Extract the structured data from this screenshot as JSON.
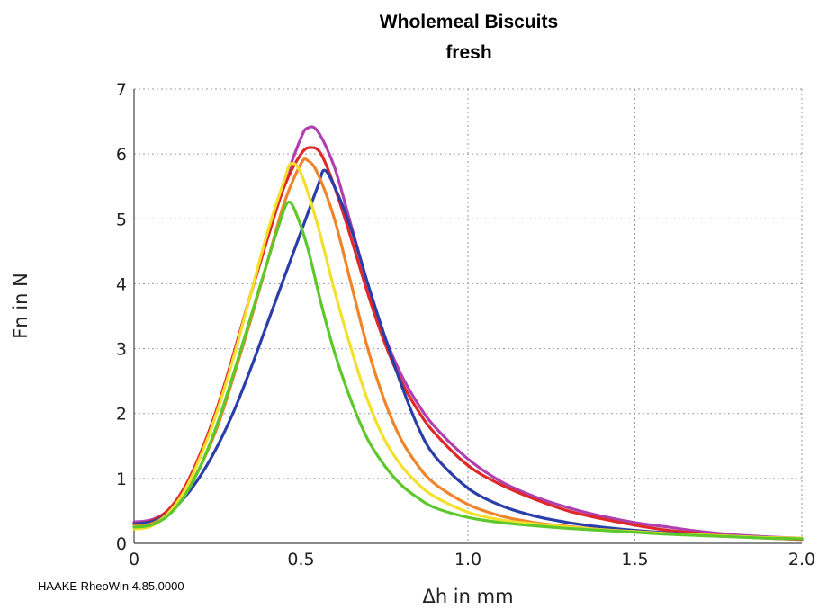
{
  "chart_data": {
    "type": "line",
    "title": "Wholemeal Biscuits",
    "subtitle": "fresh",
    "xlabel": "Δh in mm",
    "ylabel": "Fn in N",
    "xlim": [
      0,
      2.0
    ],
    "ylim": [
      0,
      7
    ],
    "xticks": [
      "0",
      "0.5",
      "1.0",
      "1.5",
      "2.0"
    ],
    "yticks": [
      "0",
      "1",
      "2",
      "3",
      "4",
      "5",
      "6",
      "7"
    ],
    "grid": true,
    "series": [
      {
        "color": "#b040b0",
        "points": [
          [
            0,
            0.33
          ],
          [
            0.05,
            0.36
          ],
          [
            0.1,
            0.5
          ],
          [
            0.15,
            0.85
          ],
          [
            0.2,
            1.4
          ],
          [
            0.25,
            2.1
          ],
          [
            0.3,
            2.95
          ],
          [
            0.35,
            3.85
          ],
          [
            0.4,
            4.75
          ],
          [
            0.45,
            5.55
          ],
          [
            0.5,
            6.25
          ],
          [
            0.52,
            6.4
          ],
          [
            0.55,
            6.35
          ],
          [
            0.6,
            5.8
          ],
          [
            0.65,
            4.9
          ],
          [
            0.7,
            4.0
          ],
          [
            0.75,
            3.2
          ],
          [
            0.8,
            2.6
          ],
          [
            0.85,
            2.15
          ],
          [
            0.9,
            1.8
          ],
          [
            1.0,
            1.3
          ],
          [
            1.1,
            0.95
          ],
          [
            1.2,
            0.72
          ],
          [
            1.3,
            0.55
          ],
          [
            1.4,
            0.42
          ],
          [
            1.5,
            0.32
          ],
          [
            1.6,
            0.25
          ],
          [
            1.7,
            0.18
          ],
          [
            1.8,
            0.13
          ],
          [
            1.9,
            0.1
          ],
          [
            2.0,
            0.08
          ]
        ]
      },
      {
        "color": "#e02828",
        "points": [
          [
            0,
            0.3
          ],
          [
            0.05,
            0.34
          ],
          [
            0.1,
            0.5
          ],
          [
            0.15,
            0.85
          ],
          [
            0.2,
            1.4
          ],
          [
            0.25,
            2.1
          ],
          [
            0.3,
            2.95
          ],
          [
            0.35,
            3.85
          ],
          [
            0.4,
            4.7
          ],
          [
            0.45,
            5.5
          ],
          [
            0.5,
            6.0
          ],
          [
            0.53,
            6.1
          ],
          [
            0.56,
            6.0
          ],
          [
            0.6,
            5.5
          ],
          [
            0.65,
            4.7
          ],
          [
            0.7,
            3.85
          ],
          [
            0.75,
            3.1
          ],
          [
            0.8,
            2.5
          ],
          [
            0.85,
            2.05
          ],
          [
            0.9,
            1.7
          ],
          [
            1.0,
            1.2
          ],
          [
            1.1,
            0.9
          ],
          [
            1.2,
            0.68
          ],
          [
            1.3,
            0.5
          ],
          [
            1.4,
            0.38
          ],
          [
            1.5,
            0.28
          ],
          [
            1.6,
            0.2
          ],
          [
            1.7,
            0.15
          ],
          [
            1.8,
            0.11
          ],
          [
            1.9,
            0.08
          ],
          [
            2.0,
            0.06
          ]
        ]
      },
      {
        "color": "#2a3ea8",
        "points": [
          [
            0,
            0.3
          ],
          [
            0.05,
            0.33
          ],
          [
            0.1,
            0.45
          ],
          [
            0.15,
            0.7
          ],
          [
            0.2,
            1.05
          ],
          [
            0.25,
            1.5
          ],
          [
            0.3,
            2.05
          ],
          [
            0.35,
            2.7
          ],
          [
            0.4,
            3.4
          ],
          [
            0.45,
            4.1
          ],
          [
            0.5,
            4.8
          ],
          [
            0.55,
            5.5
          ],
          [
            0.57,
            5.75
          ],
          [
            0.6,
            5.5
          ],
          [
            0.65,
            4.85
          ],
          [
            0.7,
            4.0
          ],
          [
            0.75,
            3.2
          ],
          [
            0.8,
            2.45
          ],
          [
            0.85,
            1.8
          ],
          [
            0.9,
            1.35
          ],
          [
            1.0,
            0.85
          ],
          [
            1.1,
            0.58
          ],
          [
            1.2,
            0.42
          ],
          [
            1.3,
            0.32
          ],
          [
            1.4,
            0.25
          ],
          [
            1.5,
            0.2
          ],
          [
            1.6,
            0.16
          ],
          [
            1.7,
            0.13
          ],
          [
            1.8,
            0.11
          ],
          [
            1.9,
            0.09
          ],
          [
            2.0,
            0.07
          ]
        ]
      },
      {
        "color": "#f0842a",
        "points": [
          [
            0,
            0.28
          ],
          [
            0.05,
            0.3
          ],
          [
            0.1,
            0.45
          ],
          [
            0.15,
            0.75
          ],
          [
            0.2,
            1.2
          ],
          [
            0.25,
            1.8
          ],
          [
            0.3,
            2.6
          ],
          [
            0.35,
            3.45
          ],
          [
            0.4,
            4.35
          ],
          [
            0.45,
            5.25
          ],
          [
            0.5,
            5.85
          ],
          [
            0.52,
            5.9
          ],
          [
            0.55,
            5.7
          ],
          [
            0.6,
            5.0
          ],
          [
            0.65,
            4.0
          ],
          [
            0.7,
            3.0
          ],
          [
            0.75,
            2.2
          ],
          [
            0.8,
            1.6
          ],
          [
            0.85,
            1.2
          ],
          [
            0.9,
            0.92
          ],
          [
            1.0,
            0.6
          ],
          [
            1.1,
            0.42
          ],
          [
            1.2,
            0.32
          ],
          [
            1.3,
            0.26
          ],
          [
            1.4,
            0.21
          ],
          [
            1.5,
            0.18
          ],
          [
            1.6,
            0.15
          ],
          [
            1.7,
            0.12
          ],
          [
            1.8,
            0.1
          ],
          [
            1.9,
            0.08
          ],
          [
            2.0,
            0.07
          ]
        ]
      },
      {
        "color": "#f2e02c",
        "points": [
          [
            0,
            0.22
          ],
          [
            0.05,
            0.26
          ],
          [
            0.1,
            0.45
          ],
          [
            0.15,
            0.8
          ],
          [
            0.2,
            1.35
          ],
          [
            0.25,
            2.05
          ],
          [
            0.3,
            2.9
          ],
          [
            0.35,
            3.85
          ],
          [
            0.4,
            4.8
          ],
          [
            0.45,
            5.6
          ],
          [
            0.47,
            5.85
          ],
          [
            0.5,
            5.7
          ],
          [
            0.55,
            4.9
          ],
          [
            0.6,
            3.9
          ],
          [
            0.65,
            3.0
          ],
          [
            0.7,
            2.2
          ],
          [
            0.75,
            1.6
          ],
          [
            0.8,
            1.2
          ],
          [
            0.85,
            0.92
          ],
          [
            0.9,
            0.72
          ],
          [
            1.0,
            0.48
          ],
          [
            1.1,
            0.36
          ],
          [
            1.2,
            0.3
          ],
          [
            1.3,
            0.25
          ],
          [
            1.4,
            0.21
          ],
          [
            1.5,
            0.18
          ],
          [
            1.6,
            0.15
          ],
          [
            1.7,
            0.13
          ],
          [
            1.8,
            0.11
          ],
          [
            1.9,
            0.09
          ],
          [
            2.0,
            0.08
          ]
        ]
      },
      {
        "color": "#5cc82c",
        "points": [
          [
            0,
            0.25
          ],
          [
            0.05,
            0.28
          ],
          [
            0.1,
            0.42
          ],
          [
            0.15,
            0.72
          ],
          [
            0.2,
            1.2
          ],
          [
            0.25,
            1.85
          ],
          [
            0.3,
            2.65
          ],
          [
            0.35,
            3.5
          ],
          [
            0.4,
            4.35
          ],
          [
            0.44,
            5.0
          ],
          [
            0.46,
            5.25
          ],
          [
            0.48,
            5.15
          ],
          [
            0.52,
            4.55
          ],
          [
            0.56,
            3.7
          ],
          [
            0.6,
            2.95
          ],
          [
            0.65,
            2.2
          ],
          [
            0.7,
            1.6
          ],
          [
            0.75,
            1.2
          ],
          [
            0.8,
            0.9
          ],
          [
            0.85,
            0.7
          ],
          [
            0.9,
            0.55
          ],
          [
            1.0,
            0.4
          ],
          [
            1.1,
            0.32
          ],
          [
            1.2,
            0.27
          ],
          [
            1.3,
            0.23
          ],
          [
            1.4,
            0.2
          ],
          [
            1.5,
            0.17
          ],
          [
            1.6,
            0.14
          ],
          [
            1.7,
            0.12
          ],
          [
            1.8,
            0.1
          ],
          [
            1.9,
            0.08
          ],
          [
            2.0,
            0.07
          ]
        ]
      }
    ]
  },
  "footer": {
    "software_label": "HAAKE RheoWin 4.85.0000"
  }
}
